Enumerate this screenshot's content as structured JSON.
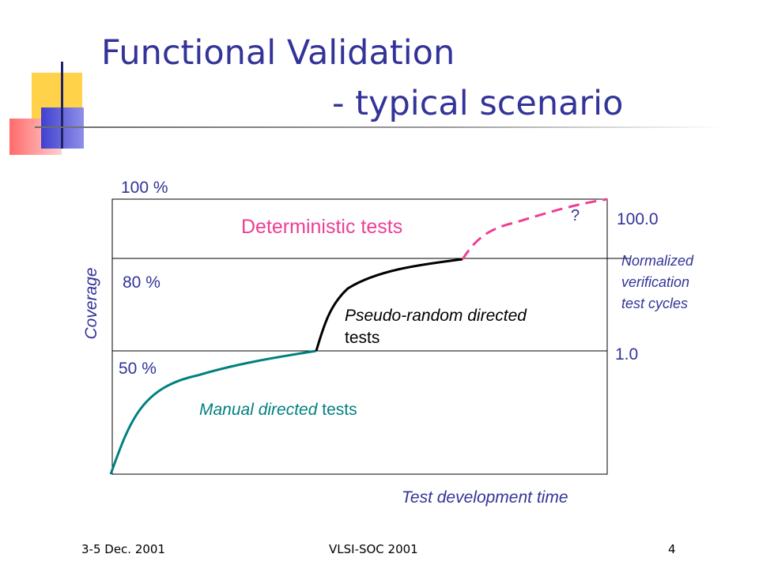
{
  "slide": {
    "title_line1": "Functional Validation",
    "title_line2": "- typical scenario"
  },
  "diagram": {
    "y_axis_label": "Coverage",
    "x_axis_label": "Test development time",
    "left_ticks": [
      "100 %",
      "80 %",
      "50 %"
    ],
    "right_ticks": [
      "100.0",
      "1.0"
    ],
    "right_axis_label_lines": [
      "Normalized",
      "verification",
      "test cycles"
    ],
    "phase_deterministic": "Deterministic tests",
    "phase_pseudo_italic": "Pseudo-random",
    "phase_pseudo_rest": " directed",
    "phase_pseudo_line2": "tests",
    "phase_manual_italic": "Manual directed",
    "phase_manual_rest": " tests",
    "question_mark": "?",
    "colors": {
      "manual": "#008080",
      "pseudo": "#000000",
      "deterministic": "#ee3e94",
      "accent": "#333399"
    }
  },
  "footer": {
    "date": "3-5 Dec. 2001",
    "event": "VLSI-SOC 2001",
    "page_number": "4"
  }
}
